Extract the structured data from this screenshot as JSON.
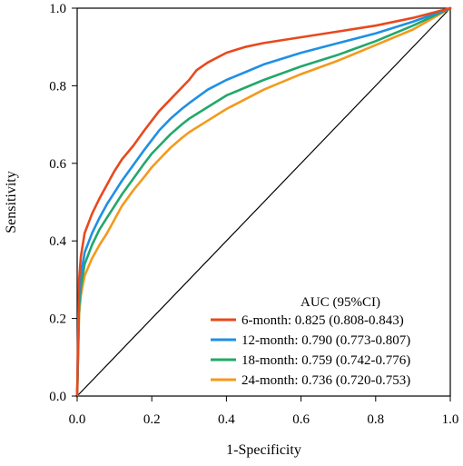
{
  "chart_data": {
    "type": "line",
    "title": "",
    "xlabel": "1-Specificity",
    "ylabel": "Sensitivity",
    "xlim": [
      0,
      1
    ],
    "ylim": [
      0,
      1
    ],
    "x_ticks": [
      "0.0",
      "0.2",
      "0.4",
      "0.6",
      "0.8",
      "1.0"
    ],
    "y_ticks": [
      "0.0",
      "0.2",
      "0.4",
      "0.6",
      "0.8",
      "1.0"
    ],
    "grid": false,
    "legend_position": "bottom-right",
    "legend_title": "AUC (95%CI)",
    "reference_line": {
      "x": [
        0,
        1
      ],
      "y": [
        0,
        1
      ],
      "color": "#000000"
    },
    "series": [
      {
        "name": "6-month: 0.825 (0.808-0.843)",
        "color": "#e8491d",
        "x": [
          0,
          0.005,
          0.01,
          0.02,
          0.04,
          0.06,
          0.08,
          0.1,
          0.12,
          0.15,
          0.18,
          0.2,
          0.22,
          0.25,
          0.28,
          0.3,
          0.32,
          0.35,
          0.4,
          0.45,
          0.5,
          0.6,
          0.7,
          0.8,
          0.9,
          1.0
        ],
        "y": [
          0,
          0.3,
          0.36,
          0.42,
          0.47,
          0.51,
          0.545,
          0.58,
          0.61,
          0.645,
          0.685,
          0.71,
          0.735,
          0.765,
          0.795,
          0.815,
          0.84,
          0.86,
          0.885,
          0.9,
          0.91,
          0.925,
          0.94,
          0.955,
          0.975,
          1.0
        ]
      },
      {
        "name": "12-month: 0.790 (0.773-0.807)",
        "color": "#1f8fe6",
        "x": [
          0,
          0.005,
          0.01,
          0.02,
          0.04,
          0.06,
          0.08,
          0.1,
          0.12,
          0.15,
          0.18,
          0.2,
          0.22,
          0.25,
          0.28,
          0.3,
          0.35,
          0.4,
          0.45,
          0.5,
          0.6,
          0.7,
          0.8,
          0.9,
          1.0
        ],
        "y": [
          0,
          0.26,
          0.31,
          0.37,
          0.42,
          0.46,
          0.495,
          0.525,
          0.555,
          0.595,
          0.635,
          0.66,
          0.685,
          0.715,
          0.74,
          0.755,
          0.79,
          0.815,
          0.835,
          0.855,
          0.885,
          0.91,
          0.935,
          0.965,
          1.0
        ]
      },
      {
        "name": "18-month: 0.759 (0.742-0.776)",
        "color": "#22a86a",
        "x": [
          0,
          0.005,
          0.01,
          0.02,
          0.04,
          0.06,
          0.08,
          0.1,
          0.12,
          0.15,
          0.18,
          0.2,
          0.22,
          0.25,
          0.28,
          0.3,
          0.35,
          0.4,
          0.45,
          0.5,
          0.6,
          0.7,
          0.8,
          0.9,
          1.0
        ],
        "y": [
          0,
          0.23,
          0.28,
          0.34,
          0.39,
          0.43,
          0.46,
          0.49,
          0.52,
          0.56,
          0.6,
          0.625,
          0.645,
          0.675,
          0.7,
          0.715,
          0.745,
          0.775,
          0.795,
          0.815,
          0.85,
          0.88,
          0.915,
          0.955,
          1.0
        ]
      },
      {
        "name": "24-month: 0.736 (0.720-0.753)",
        "color": "#f39a1c",
        "x": [
          0,
          0.005,
          0.01,
          0.02,
          0.04,
          0.06,
          0.08,
          0.1,
          0.12,
          0.15,
          0.18,
          0.2,
          0.22,
          0.25,
          0.28,
          0.3,
          0.35,
          0.4,
          0.45,
          0.5,
          0.6,
          0.7,
          0.8,
          0.9,
          1.0
        ],
        "y": [
          0,
          0.21,
          0.26,
          0.31,
          0.355,
          0.39,
          0.42,
          0.455,
          0.49,
          0.53,
          0.565,
          0.59,
          0.61,
          0.64,
          0.665,
          0.68,
          0.71,
          0.74,
          0.765,
          0.79,
          0.83,
          0.865,
          0.905,
          0.945,
          1.0
        ]
      }
    ]
  }
}
